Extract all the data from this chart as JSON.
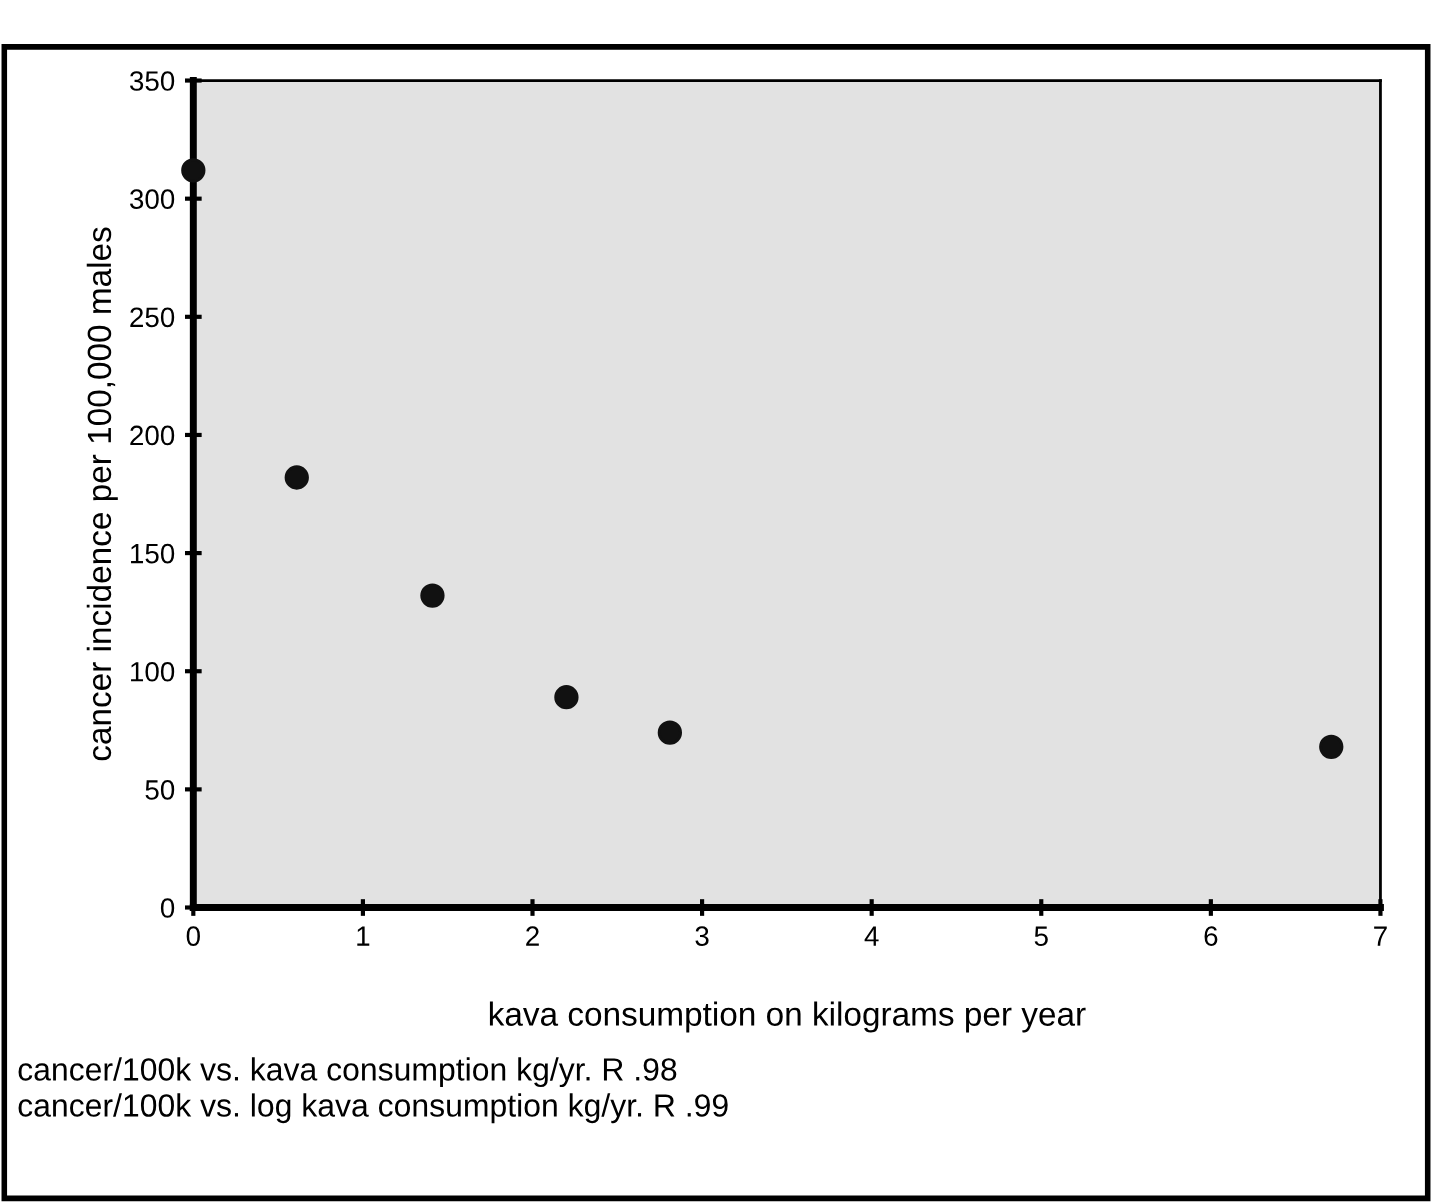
{
  "chart_data": {
    "type": "scatter",
    "xlabel": "kava consumption on kilograms per year",
    "ylabel": "cancer incidence per 100,000 males",
    "x": [
      0,
      0.61,
      1.41,
      2.2,
      2.81,
      6.71
    ],
    "values": [
      312,
      182,
      132,
      89,
      74,
      68
    ],
    "color": "#111111",
    "marker": "circle",
    "xlim": [
      0,
      7
    ],
    "xticks": [
      0,
      1,
      2,
      3,
      4,
      5,
      6,
      7
    ],
    "ylim": [
      0,
      350
    ],
    "yticks": [
      0,
      50,
      100,
      150,
      200,
      250,
      300,
      350
    ],
    "grid": false,
    "annotations": [
      "cancer/100k vs. kava consumption kg/yr. R .98",
      "cancer/100k vs. log kava consumption kg/yr. R .99"
    ]
  }
}
